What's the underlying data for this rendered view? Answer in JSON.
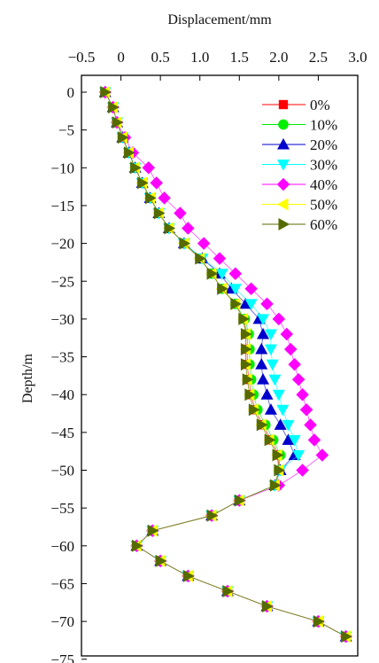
{
  "chart_data": {
    "type": "line",
    "title": "",
    "xlabel": "Displacement/mm",
    "ylabel": "Depth/m",
    "x_axis_position": "top",
    "y_inverted": false,
    "xlim": [
      -0.5,
      3.0
    ],
    "ylim": [
      -75,
      2
    ],
    "x_ticks": [
      -0.5,
      0,
      0.5,
      1.0,
      1.5,
      2.0,
      2.5,
      3.0
    ],
    "x_tick_labels": [
      "−0.5",
      "0",
      "0.5",
      "1.0",
      "1.5",
      "2.0",
      "2.5",
      "3.0"
    ],
    "y_ticks": [
      0,
      -5,
      -10,
      -15,
      -20,
      -25,
      -30,
      -35,
      -40,
      -45,
      -50,
      -55,
      -60,
      -65,
      -70,
      -75
    ],
    "y_tick_labels": [
      "0",
      "−5",
      "−10",
      "−15",
      "−20",
      "−25",
      "−30",
      "−35",
      "−40",
      "−45",
      "−50",
      "−55",
      "−60",
      "−65",
      "−70",
      "−75"
    ],
    "grid": false,
    "legend_position": "top-right",
    "depth": [
      0,
      -2,
      -4,
      -6,
      -8,
      -10,
      -12,
      -14,
      -16,
      -18,
      -20,
      -22,
      -24,
      -26,
      -28,
      -30,
      -32,
      -34,
      -36,
      -38,
      -40,
      -42,
      -44,
      -46,
      -48,
      -50,
      -52,
      -54,
      -56,
      -58,
      -60,
      -62,
      -64,
      -66,
      -68,
      -70,
      -72
    ],
    "series": [
      {
        "name": "0%",
        "color": "#ff0000",
        "marker": "square",
        "values": [
          -0.2,
          -0.1,
          -0.05,
          0.02,
          0.1,
          0.18,
          0.27,
          0.37,
          0.48,
          0.61,
          0.8,
          1.0,
          1.15,
          1.28,
          1.45,
          1.55,
          1.6,
          1.6,
          1.6,
          1.62,
          1.65,
          1.7,
          1.8,
          1.9,
          2.0,
          2.0,
          1.95,
          1.5,
          1.15,
          0.4,
          0.2,
          0.5,
          0.85,
          1.35,
          1.85,
          2.5,
          2.85
        ]
      },
      {
        "name": "10%",
        "color": "#00ee00",
        "marker": "circle",
        "values": [
          -0.2,
          -0.1,
          -0.05,
          0.02,
          0.1,
          0.18,
          0.27,
          0.37,
          0.48,
          0.61,
          0.8,
          1.0,
          1.15,
          1.28,
          1.45,
          1.57,
          1.62,
          1.63,
          1.63,
          1.65,
          1.68,
          1.73,
          1.83,
          1.93,
          2.02,
          2.0,
          1.95,
          1.5,
          1.15,
          0.4,
          0.2,
          0.5,
          0.85,
          1.35,
          1.85,
          2.5,
          2.85
        ]
      },
      {
        "name": "20%",
        "color": "#0000cc",
        "marker": "triangle-up",
        "values": [
          -0.2,
          -0.1,
          -0.05,
          0.02,
          0.1,
          0.18,
          0.27,
          0.37,
          0.48,
          0.61,
          0.8,
          1.03,
          1.25,
          1.4,
          1.58,
          1.75,
          1.8,
          1.78,
          1.78,
          1.8,
          1.85,
          1.9,
          2.02,
          2.12,
          2.2,
          2.02,
          1.95,
          1.5,
          1.15,
          0.4,
          0.2,
          0.5,
          0.85,
          1.35,
          1.85,
          2.5,
          2.85
        ]
      },
      {
        "name": "30%",
        "color": "#00ffff",
        "marker": "triangle-down",
        "values": [
          -0.2,
          -0.1,
          -0.05,
          0.02,
          0.1,
          0.18,
          0.27,
          0.37,
          0.48,
          0.61,
          0.8,
          1.03,
          1.28,
          1.45,
          1.65,
          1.8,
          1.9,
          1.9,
          1.92,
          1.95,
          2.0,
          2.05,
          2.12,
          2.2,
          2.25,
          2.02,
          1.95,
          1.5,
          1.15,
          0.4,
          0.2,
          0.5,
          0.85,
          1.35,
          1.85,
          2.5,
          2.85
        ]
      },
      {
        "name": "40%",
        "color": "#ff00ff",
        "marker": "diamond",
        "values": [
          -0.2,
          -0.1,
          -0.05,
          0.05,
          0.15,
          0.35,
          0.45,
          0.55,
          0.75,
          0.85,
          1.05,
          1.25,
          1.45,
          1.65,
          1.85,
          2.0,
          2.1,
          2.15,
          2.2,
          2.25,
          2.3,
          2.35,
          2.4,
          2.45,
          2.55,
          2.3,
          2.0,
          1.5,
          1.15,
          0.4,
          0.2,
          0.5,
          0.85,
          1.35,
          1.85,
          2.5,
          2.85
        ]
      },
      {
        "name": "50%",
        "color": "#ffff00",
        "marker": "triangle-left",
        "values": [
          -0.2,
          -0.1,
          -0.05,
          0.02,
          0.1,
          0.18,
          0.27,
          0.37,
          0.48,
          0.61,
          0.8,
          1.0,
          1.15,
          1.28,
          1.45,
          1.55,
          1.58,
          1.58,
          1.58,
          1.6,
          1.63,
          1.68,
          1.78,
          1.88,
          1.98,
          2.0,
          1.95,
          1.5,
          1.15,
          0.4,
          0.2,
          0.5,
          0.85,
          1.35,
          1.85,
          2.5,
          2.85
        ]
      },
      {
        "name": "60%",
        "color": "#556b00",
        "marker": "triangle-right",
        "values": [
          -0.2,
          -0.1,
          -0.05,
          0.02,
          0.1,
          0.18,
          0.27,
          0.37,
          0.48,
          0.61,
          0.8,
          1.0,
          1.15,
          1.28,
          1.45,
          1.55,
          1.58,
          1.58,
          1.58,
          1.6,
          1.63,
          1.68,
          1.78,
          1.88,
          1.98,
          2.0,
          1.95,
          1.5,
          1.15,
          0.4,
          0.2,
          0.5,
          0.85,
          1.35,
          1.85,
          2.5,
          2.85
        ]
      }
    ]
  }
}
